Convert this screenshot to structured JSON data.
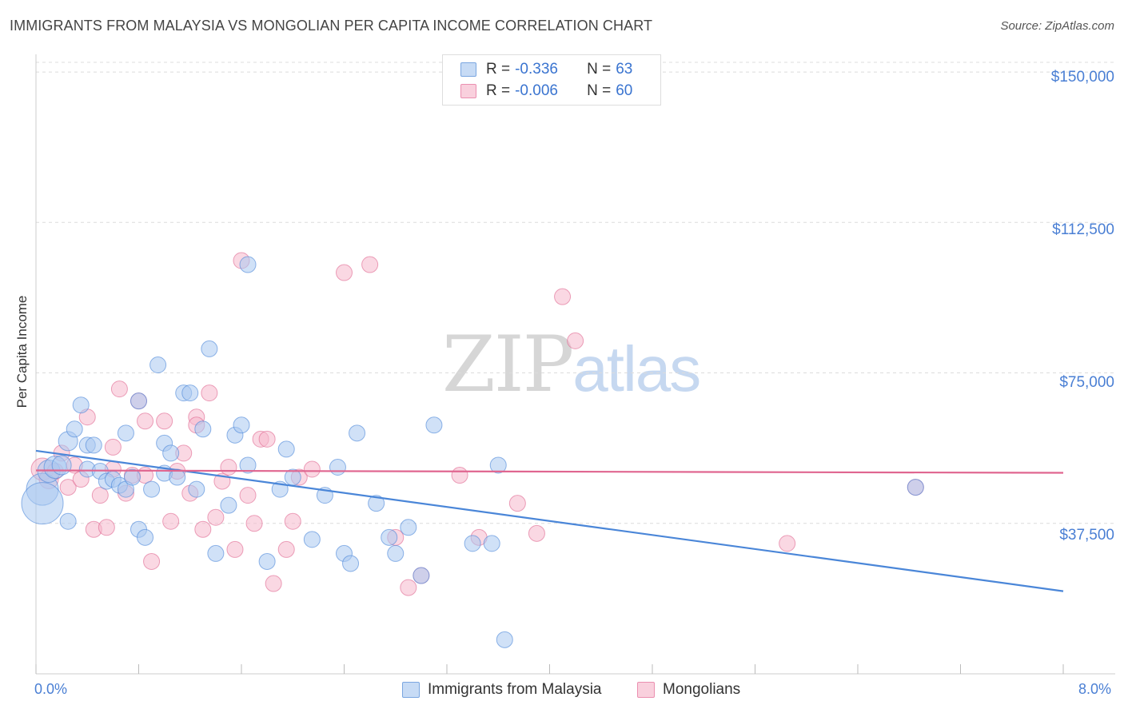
{
  "header": {
    "title": "IMMIGRANTS FROM MALAYSIA VS MONGOLIAN PER CAPITA INCOME CORRELATION CHART",
    "source": "Source: ZipAtlas.com"
  },
  "watermark": {
    "zip": "ZIP",
    "atlas": "atlas"
  },
  "stats": [
    {
      "r_label": "R =",
      "r_value": "-0.336",
      "n_label": "N =",
      "n_value": "63",
      "color": "#aac8f0"
    },
    {
      "r_label": "R =",
      "r_value": "-0.006",
      "n_label": "N =",
      "n_value": "60",
      "color": "#f5b8cc"
    }
  ],
  "legend": [
    {
      "label": "Immigrants from Malaysia",
      "color": "#aac8f0"
    },
    {
      "label": "Mongolians",
      "color": "#f5b8cc"
    }
  ],
  "chart_data": {
    "type": "scatter",
    "title": "IMMIGRANTS FROM MALAYSIA VS MONGOLIAN PER CAPITA INCOME CORRELATION CHART",
    "xlabel": "",
    "ylabel": "Per Capita Income",
    "x_tick_labels": [
      "0.0%",
      "8.0%"
    ],
    "y_tick_labels": [
      "$150,000",
      "$112,500",
      "$75,000",
      "$37,500"
    ],
    "y_ticks": [
      150000,
      112500,
      75000,
      37500
    ],
    "xlim": [
      0,
      8
    ],
    "ylim": [
      0,
      154000
    ],
    "grid": true,
    "series": [
      {
        "name": "Immigrants from Malaysia",
        "color": "#4a86d8",
        "fill": "#aac8f0",
        "trend": [
          [
            0,
            55600
          ],
          [
            8,
            20600
          ]
        ],
        "points": [
          [
            0.05,
            46000,
            20
          ],
          [
            0.05,
            42500,
            26
          ],
          [
            0.1,
            50500,
            14
          ],
          [
            0.15,
            51500,
            14
          ],
          [
            0.2,
            52000,
            12
          ],
          [
            0.25,
            58000,
            12
          ],
          [
            0.25,
            38000,
            10
          ],
          [
            0.3,
            61000,
            10
          ],
          [
            0.35,
            67000,
            10
          ],
          [
            0.4,
            57000,
            10
          ],
          [
            0.4,
            51000,
            10
          ],
          [
            0.45,
            57000,
            10
          ],
          [
            0.5,
            50500,
            10
          ],
          [
            0.55,
            48000,
            10
          ],
          [
            0.6,
            48500,
            10
          ],
          [
            0.65,
            47000,
            10
          ],
          [
            0.7,
            46000,
            10
          ],
          [
            0.7,
            60000,
            10
          ],
          [
            0.75,
            49000,
            10
          ],
          [
            0.8,
            68000,
            10
          ],
          [
            0.8,
            36000,
            10
          ],
          [
            0.85,
            34000,
            10
          ],
          [
            0.9,
            46000,
            10
          ],
          [
            0.95,
            77000,
            10
          ],
          [
            1.0,
            57500,
            10
          ],
          [
            1.0,
            50000,
            10
          ],
          [
            1.05,
            55000,
            10
          ],
          [
            1.1,
            49000,
            10
          ],
          [
            1.15,
            70000,
            10
          ],
          [
            1.2,
            70000,
            10
          ],
          [
            1.25,
            46000,
            10
          ],
          [
            1.3,
            61000,
            10
          ],
          [
            1.35,
            81000,
            10
          ],
          [
            1.4,
            30000,
            10
          ],
          [
            1.5,
            42000,
            10
          ],
          [
            1.55,
            59500,
            10
          ],
          [
            1.6,
            62000,
            10
          ],
          [
            1.65,
            102000,
            10
          ],
          [
            1.65,
            52000,
            10
          ],
          [
            1.8,
            28000,
            10
          ],
          [
            1.9,
            46000,
            10
          ],
          [
            1.95,
            56000,
            10
          ],
          [
            2.0,
            49000,
            10
          ],
          [
            2.15,
            33500,
            10
          ],
          [
            2.25,
            44500,
            10
          ],
          [
            2.35,
            51500,
            10
          ],
          [
            2.4,
            30000,
            10
          ],
          [
            2.45,
            27500,
            10
          ],
          [
            2.5,
            60000,
            10
          ],
          [
            2.65,
            42500,
            10
          ],
          [
            2.75,
            34000,
            10
          ],
          [
            2.8,
            30000,
            10
          ],
          [
            2.9,
            36500,
            10
          ],
          [
            3.0,
            24500,
            10
          ],
          [
            3.1,
            62000,
            10
          ],
          [
            3.4,
            32500,
            10
          ],
          [
            3.55,
            32500,
            10
          ],
          [
            3.6,
            52000,
            10
          ],
          [
            3.65,
            8500,
            10
          ],
          [
            6.85,
            46500,
            10
          ]
        ]
      },
      {
        "name": "Mongolians",
        "color": "#e06690",
        "fill": "#f5b8cc",
        "trend": [
          [
            0,
            50700
          ],
          [
            8,
            50100
          ]
        ],
        "points": [
          [
            0.05,
            51000,
            14
          ],
          [
            0.1,
            48500,
            12
          ],
          [
            0.15,
            50500,
            10
          ],
          [
            0.2,
            55000,
            10
          ],
          [
            0.25,
            46500,
            10
          ],
          [
            0.3,
            52000,
            10
          ],
          [
            0.35,
            48500,
            10
          ],
          [
            0.4,
            64000,
            10
          ],
          [
            0.45,
            36000,
            10
          ],
          [
            0.5,
            44500,
            10
          ],
          [
            0.55,
            36500,
            10
          ],
          [
            0.6,
            51000,
            10
          ],
          [
            0.6,
            56500,
            10
          ],
          [
            0.65,
            71000,
            10
          ],
          [
            0.7,
            45000,
            10
          ],
          [
            0.75,
            49500,
            10
          ],
          [
            0.8,
            68000,
            10
          ],
          [
            0.85,
            63000,
            10
          ],
          [
            0.85,
            49500,
            10
          ],
          [
            0.9,
            28000,
            10
          ],
          [
            1.0,
            63000,
            10
          ],
          [
            1.05,
            38000,
            10
          ],
          [
            1.1,
            50500,
            10
          ],
          [
            1.15,
            55000,
            10
          ],
          [
            1.2,
            45000,
            10
          ],
          [
            1.25,
            64000,
            10
          ],
          [
            1.25,
            62000,
            10
          ],
          [
            1.3,
            36000,
            10
          ],
          [
            1.35,
            70000,
            10
          ],
          [
            1.4,
            39000,
            10
          ],
          [
            1.45,
            48000,
            10
          ],
          [
            1.5,
            51500,
            10
          ],
          [
            1.55,
            31000,
            10
          ],
          [
            1.6,
            103000,
            10
          ],
          [
            1.65,
            44500,
            10
          ],
          [
            1.7,
            37500,
            10
          ],
          [
            1.75,
            58500,
            10
          ],
          [
            1.8,
            58500,
            10
          ],
          [
            1.85,
            22500,
            10
          ],
          [
            1.95,
            31000,
            10
          ],
          [
            2.0,
            38000,
            10
          ],
          [
            2.05,
            49000,
            10
          ],
          [
            2.15,
            51000,
            10
          ],
          [
            2.4,
            100000,
            10
          ],
          [
            2.6,
            102000,
            10
          ],
          [
            2.8,
            34000,
            10
          ],
          [
            2.9,
            21500,
            10
          ],
          [
            3.0,
            24500,
            10
          ],
          [
            3.3,
            49500,
            10
          ],
          [
            3.45,
            34000,
            10
          ],
          [
            3.75,
            42500,
            10
          ],
          [
            3.9,
            35000,
            10
          ],
          [
            4.1,
            94000,
            10
          ],
          [
            4.2,
            83000,
            10
          ],
          [
            5.85,
            32500,
            10
          ],
          [
            6.85,
            46500,
            10
          ]
        ]
      }
    ]
  }
}
